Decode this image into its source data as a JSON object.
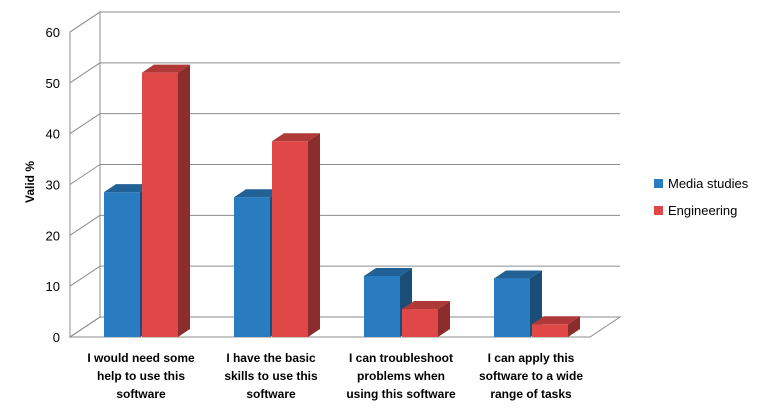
{
  "chart_data": {
    "type": "bar",
    "style": "3d-clustered-column",
    "categories": [
      [
        "I would need some",
        "help to use this",
        "software"
      ],
      [
        "I have the basic",
        "skills to use this",
        "software"
      ],
      [
        "I can troubleshoot",
        "problems when",
        "using this software"
      ],
      [
        "I can apply this",
        "software to a wide",
        "range of tasks"
      ]
    ],
    "series": [
      {
        "name": "Media studies",
        "values": [
          28.5,
          27.5,
          12,
          11.5
        ],
        "color": "#2a7cc0"
      },
      {
        "name": "Engineering",
        "values": [
          52,
          38.5,
          5.5,
          2.5
        ],
        "color": "#e04848"
      }
    ],
    "title": "",
    "xlabel": "",
    "ylabel": "Valid %",
    "ylim": [
      0,
      60
    ],
    "yticks": [
      0,
      10,
      20,
      30,
      40,
      50,
      60
    ],
    "grid": true,
    "legend_position": "right"
  }
}
